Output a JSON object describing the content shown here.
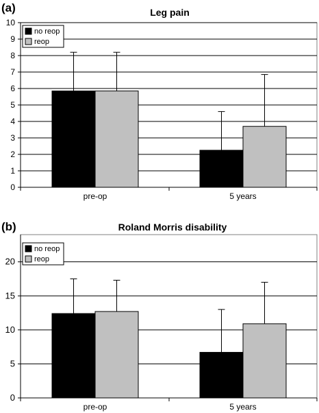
{
  "chart_data": [
    {
      "type": "bar",
      "panel_label": "(a)",
      "title": "Leg pain",
      "categories": [
        "pre-op",
        "5 years"
      ],
      "series": [
        {
          "name": "no reop",
          "color": "#000000",
          "values": [
            5.85,
            2.25
          ],
          "error_upper": [
            8.2,
            4.6
          ]
        },
        {
          "name": "reop",
          "color": "#c0c0c0",
          "values": [
            5.85,
            3.7
          ],
          "error_upper": [
            8.2,
            6.85
          ]
        }
      ],
      "ylim": [
        0,
        10
      ],
      "yticks": [
        0,
        1,
        2,
        3,
        4,
        5,
        6,
        7,
        8,
        9,
        10
      ],
      "grid": true,
      "legend_position": "top-left"
    },
    {
      "type": "bar",
      "panel_label": "(b)",
      "title": "Roland Morris disability",
      "categories": [
        "pre-op",
        "5 years"
      ],
      "series": [
        {
          "name": "no reop",
          "color": "#000000",
          "values": [
            12.4,
            6.7
          ],
          "error_upper": [
            17.5,
            13.0
          ]
        },
        {
          "name": "reop",
          "color": "#c0c0c0",
          "values": [
            12.7,
            10.9
          ],
          "error_upper": [
            17.3,
            17.0
          ]
        }
      ],
      "ylim": [
        0,
        24
      ],
      "yticks": [
        0,
        5,
        10,
        15,
        20
      ],
      "grid": true,
      "legend_position": "top-left"
    }
  ]
}
